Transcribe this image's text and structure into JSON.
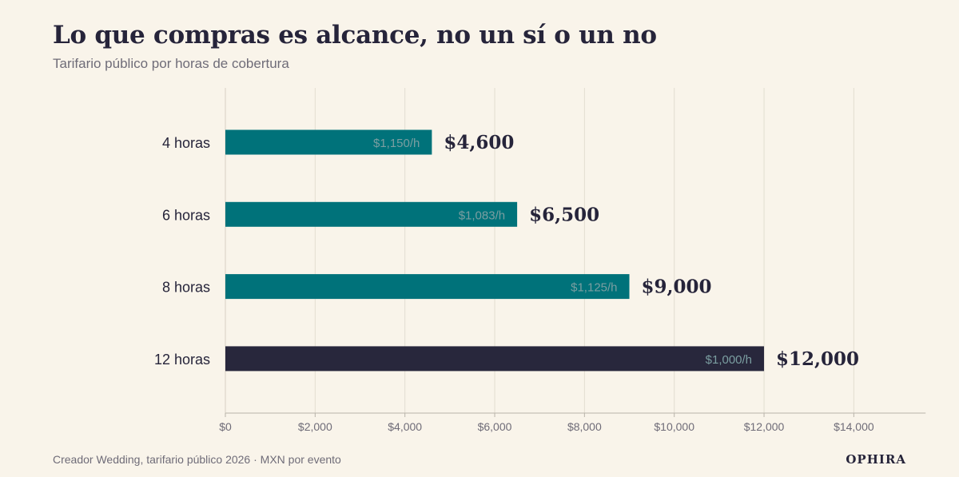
{
  "header": {
    "title": "Lo que compras es alcance, no un sí o un no",
    "subtitle": "Tarifario público por horas de cobertura"
  },
  "footer": {
    "source": "Creador Wedding, tarifario público 2026 · MXN por evento",
    "brand": "OPHIRA"
  },
  "colors": {
    "background": "#f9f4ea",
    "teal": "#00727a",
    "dark": "#28273c",
    "text": "#26243a",
    "muted": "#6f6c78",
    "inner_label": "#7b9ea1",
    "grid": "#e2ddd1"
  },
  "chart_data": {
    "type": "bar",
    "orientation": "horizontal",
    "title": "Lo que compras es alcance, no un sí o un no",
    "subtitle": "Tarifario público por horas de cobertura",
    "categories": [
      "4 horas",
      "6 horas",
      "8 horas",
      "12 horas"
    ],
    "values": [
      4600,
      6500,
      9000,
      12000
    ],
    "value_labels": [
      "$4,600",
      "$6,500",
      "$9,000",
      "$12,000"
    ],
    "rate_labels": [
      "$1,150/h",
      "$1,083/h",
      "$1,125/h",
      "$1,000/h"
    ],
    "bar_colors": [
      "#00727a",
      "#00727a",
      "#00727a",
      "#28273c"
    ],
    "x_ticks": [
      0,
      2000,
      4000,
      6000,
      8000,
      10000,
      12000,
      14000
    ],
    "x_tick_labels": [
      "$0",
      "$2,000",
      "$4,000",
      "$6,000",
      "$8,000",
      "$10,000",
      "$12,000",
      "$14,000"
    ],
    "xlim": [
      0,
      15600
    ],
    "xlabel": "",
    "ylabel": "",
    "grid": "vertical",
    "legend": "none"
  }
}
